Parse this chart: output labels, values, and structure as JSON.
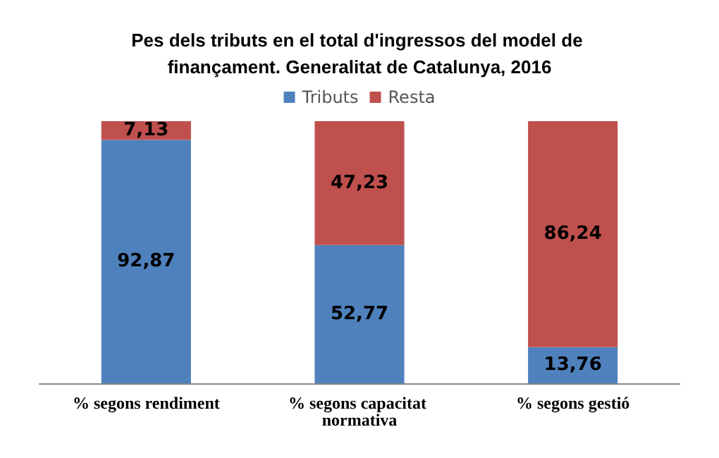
{
  "chart_data": {
    "type": "bar",
    "title": "Pes dels tributs en el total d'ingressos del model de finançament. Generalitat de Catalunya, 2016",
    "categories": [
      "% segons rendiment",
      "% segons capacitat normativa",
      "% segons gestió"
    ],
    "stacked": true,
    "legend": "top",
    "series": [
      {
        "name": "Tributs",
        "color": "#4f81bd",
        "values": [
          92.87,
          52.77,
          13.76
        ],
        "value_labels": [
          "92,87",
          "52,77",
          "13,76"
        ]
      },
      {
        "name": "Resta",
        "color": "#c0504d",
        "values": [
          7.13,
          47.23,
          86.24
        ],
        "value_labels": [
          "7,13",
          "47,23",
          "86,24"
        ]
      }
    ]
  }
}
